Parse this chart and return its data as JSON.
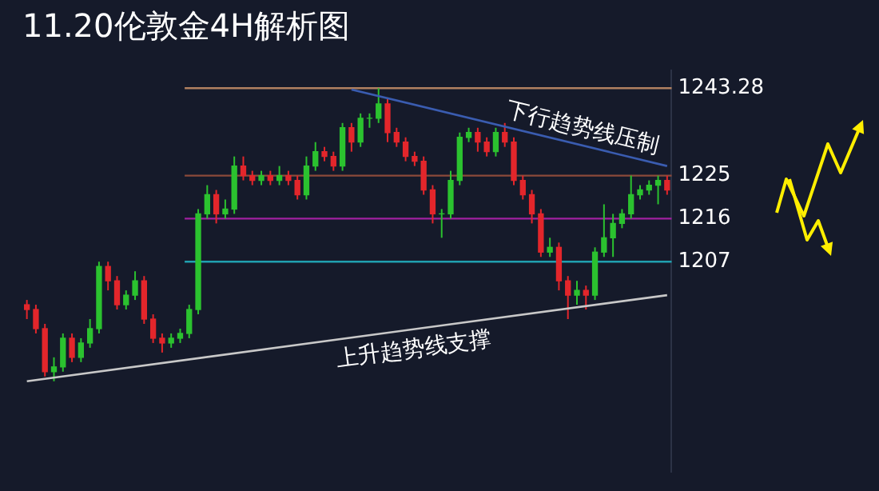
{
  "chart_data": {
    "type": "candlestick",
    "title": "11.20伦敦金4H解析图",
    "grid": false,
    "legend": false,
    "tick_labels": "y",
    "ylim": [
      1163,
      1247
    ],
    "yticks": [
      1207,
      1216,
      1225,
      1243.28
    ],
    "annotations": [
      "下行趋势线压制",
      "上升趋势线支撑"
    ],
    "categories": [
      null,
      null,
      null,
      null,
      null,
      null,
      null,
      null,
      null,
      null,
      null,
      null,
      null,
      null,
      null,
      null,
      null,
      null,
      null,
      null,
      null,
      null,
      null,
      null,
      null,
      null,
      null,
      null,
      null,
      null,
      null,
      null,
      null,
      null,
      null,
      null,
      null,
      null,
      null,
      null,
      null,
      null,
      null,
      null,
      null,
      null,
      null,
      null,
      null,
      null,
      null,
      null,
      null,
      null,
      null,
      null,
      null,
      null,
      null,
      null,
      null,
      null,
      null,
      null,
      null,
      null,
      null,
      null,
      null,
      null,
      null,
      null
    ],
    "ohlc": [
      [
        1198,
        1199,
        1195,
        1197
      ],
      [
        1197,
        1198,
        1192,
        1193
      ],
      [
        1193,
        1194,
        1183,
        1184
      ],
      [
        1184,
        1187,
        1182,
        1185
      ],
      [
        1185,
        1192,
        1184,
        1191
      ],
      [
        1191,
        1192,
        1186,
        1187
      ],
      [
        1187,
        1191,
        1186,
        1190
      ],
      [
        1190,
        1195,
        1189,
        1193
      ],
      [
        1193,
        1207,
        1192,
        1206
      ],
      [
        1206,
        1207,
        1201,
        1203
      ],
      [
        1203,
        1204,
        1197,
        1198
      ],
      [
        1198,
        1201,
        1197,
        1200
      ],
      [
        1200,
        1205,
        1199,
        1203
      ],
      [
        1203,
        1204,
        1194,
        1195
      ],
      [
        1195,
        1196,
        1190,
        1191
      ],
      [
        1191,
        1192,
        1188,
        1190
      ],
      [
        1190,
        1192,
        1189,
        1191
      ],
      [
        1191,
        1193,
        1190,
        1192
      ],
      [
        1192,
        1198,
        1191,
        1197
      ],
      [
        1197,
        1218,
        1196,
        1217
      ],
      [
        1217,
        1223,
        1216,
        1221
      ],
      [
        1221,
        1222,
        1215,
        1217
      ],
      [
        1217,
        1220,
        1216,
        1218
      ],
      [
        1218,
        1229,
        1217,
        1227
      ],
      [
        1227,
        1229,
        1224,
        1225
      ],
      [
        1225,
        1226,
        1223,
        1224
      ],
      [
        1224,
        1226,
        1223,
        1225
      ],
      [
        1225,
        1226,
        1223,
        1224
      ],
      [
        1224,
        1227,
        1223,
        1225
      ],
      [
        1225,
        1226,
        1223,
        1224
      ],
      [
        1224,
        1225,
        1220,
        1221
      ],
      [
        1221,
        1229,
        1220,
        1227
      ],
      [
        1227,
        1232,
        1226,
        1230
      ],
      [
        1230,
        1231,
        1228,
        1229
      ],
      [
        1229,
        1230,
        1226,
        1227
      ],
      [
        1227,
        1236,
        1226,
        1235
      ],
      [
        1235,
        1236,
        1230,
        1232
      ],
      [
        1232,
        1238,
        1231,
        1237
      ],
      [
        1237,
        1238,
        1235,
        1237
      ],
      [
        1237,
        1243.28,
        1236,
        1240
      ],
      [
        1240,
        1241,
        1232,
        1234
      ],
      [
        1234,
        1235,
        1231,
        1232
      ],
      [
        1232,
        1233,
        1228,
        1229
      ],
      [
        1229,
        1230,
        1227,
        1228
      ],
      [
        1228,
        1229,
        1221,
        1222
      ],
      [
        1222,
        1223,
        1215,
        1217
      ],
      [
        1217,
        1218,
        1212,
        1217
      ],
      [
        1217,
        1226,
        1216,
        1224
      ],
      [
        1224,
        1234,
        1223,
        1233
      ],
      [
        1233,
        1235,
        1232,
        1234
      ],
      [
        1234,
        1235,
        1230,
        1232
      ],
      [
        1232,
        1233,
        1229,
        1230
      ],
      [
        1230,
        1235,
        1229,
        1234
      ],
      [
        1234,
        1236,
        1231,
        1232
      ],
      [
        1232,
        1233,
        1223,
        1224
      ],
      [
        1224,
        1225,
        1220,
        1221
      ],
      [
        1221,
        1222,
        1215,
        1217
      ],
      [
        1217,
        1218,
        1208,
        1209
      ],
      [
        1209,
        1212,
        1208,
        1210
      ],
      [
        1210,
        1211,
        1201,
        1203
      ],
      [
        1203,
        1204,
        1195,
        1200
      ],
      [
        1200,
        1203,
        1198,
        1201
      ],
      [
        1201,
        1202,
        1197,
        1200
      ],
      [
        1200,
        1210,
        1199,
        1209
      ],
      [
        1209,
        1219,
        1208,
        1212
      ],
      [
        1212,
        1217,
        1208,
        1215
      ],
      [
        1215,
        1218,
        1214,
        1217
      ],
      [
        1217,
        1225,
        1216,
        1221
      ],
      [
        1221,
        1223,
        1220,
        1222
      ],
      [
        1222,
        1224,
        1221,
        1223
      ],
      [
        1223,
        1225,
        1219,
        1224
      ],
      [
        1224,
        1225,
        1221,
        1222
      ]
    ],
    "series": [
      {
        "type": "line",
        "color": "#3a5cb0",
        "values": [
          null,
          null,
          null,
          null,
          null,
          null,
          null,
          null,
          null,
          null,
          null,
          null,
          null,
          null,
          null,
          null,
          null,
          null,
          null,
          null,
          null,
          null,
          null,
          null,
          null,
          null,
          null,
          null,
          null,
          null,
          null,
          null,
          null,
          null,
          null,
          null,
          1243,
          null,
          null,
          null,
          null,
          null,
          null,
          null,
          null,
          null,
          null,
          null,
          null,
          null,
          null,
          null,
          null,
          null,
          null,
          null,
          null,
          null,
          null,
          null,
          null,
          null,
          null,
          null,
          null,
          null,
          null,
          null,
          null,
          null,
          null,
          1227
        ]
      },
      {
        "type": "line",
        "color": "#c8c8c8",
        "values": [
          1182,
          null,
          null,
          null,
          null,
          null,
          null,
          null,
          null,
          null,
          null,
          null,
          null,
          null,
          null,
          null,
          null,
          null,
          null,
          null,
          null,
          null,
          null,
          null,
          null,
          null,
          null,
          null,
          null,
          null,
          null,
          null,
          null,
          null,
          null,
          null,
          null,
          null,
          null,
          null,
          null,
          null,
          null,
          null,
          null,
          null,
          null,
          null,
          null,
          null,
          null,
          null,
          null,
          null,
          null,
          null,
          null,
          null,
          null,
          null,
          null,
          null,
          null,
          null,
          null,
          null,
          null,
          null,
          null,
          null,
          null,
          1200
        ]
      }
    ],
    "ref_lines": [
      {
        "axis": "y",
        "value": 1243.28,
        "color": "#b08060"
      },
      {
        "axis": "y",
        "value": 1225,
        "color": "#8b4a3a"
      },
      {
        "axis": "y",
        "value": 1216,
        "color": "#a020a0"
      },
      {
        "axis": "y",
        "value": 1207,
        "color": "#20a0b0"
      }
    ]
  }
}
